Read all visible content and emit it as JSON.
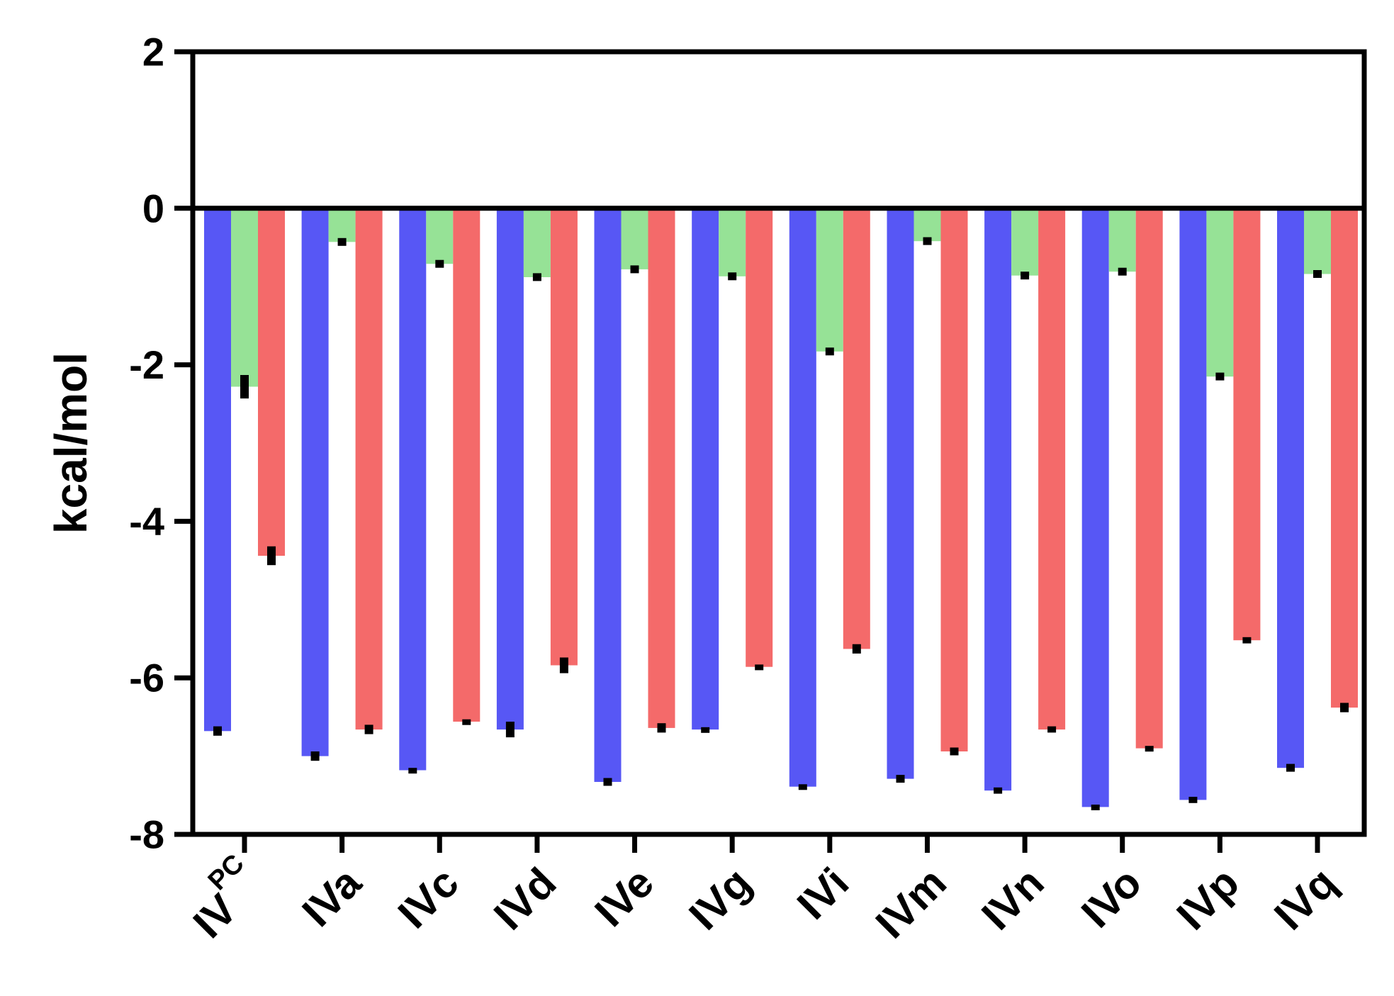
{
  "chart_data": {
    "type": "bar",
    "title": "",
    "xlabel": "",
    "ylabel": "kcal/mol",
    "ylim": [
      -8,
      2
    ],
    "yticks": [
      2,
      0,
      -2,
      -4,
      -6,
      -8
    ],
    "ytick_labels": [
      "2",
      "0",
      "-2",
      "-4",
      "-6",
      "-8"
    ],
    "grid": false,
    "legend": "none",
    "categories": [
      {
        "base": "IV",
        "sup": "PC"
      },
      {
        "base": "IVa",
        "sup": ""
      },
      {
        "base": "IVc",
        "sup": ""
      },
      {
        "base": "IVd",
        "sup": ""
      },
      {
        "base": "IVe",
        "sup": ""
      },
      {
        "base": "IVg",
        "sup": ""
      },
      {
        "base": "IVi",
        "sup": ""
      },
      {
        "base": "IVm",
        "sup": ""
      },
      {
        "base": "IVn",
        "sup": ""
      },
      {
        "base": "IVo",
        "sup": ""
      },
      {
        "base": "IVp",
        "sup": ""
      },
      {
        "base": "IVq",
        "sup": ""
      }
    ],
    "series": [
      {
        "color": "#5757f5",
        "values": [
          -6.68,
          -7.0,
          -7.18,
          -6.66,
          -7.33,
          -6.66,
          -7.39,
          -7.29,
          -7.44,
          -7.65,
          -7.56,
          -7.15
        ],
        "errors": [
          0.06,
          0.06,
          0.03,
          0.1,
          0.05,
          0.03,
          0.03,
          0.05,
          0.04,
          0.03,
          0.04,
          0.05
        ]
      },
      {
        "color": "#96e296",
        "values": [
          -2.28,
          -0.43,
          -0.71,
          -0.88,
          -0.78,
          -0.87,
          -1.83,
          -0.42,
          -0.86,
          -0.81,
          -2.15,
          -0.84
        ],
        "errors": [
          0.15,
          0.05,
          0.05,
          0.05,
          0.05,
          0.05,
          0.05,
          0.05,
          0.05,
          0.05,
          0.05,
          0.05
        ]
      },
      {
        "color": "#f46a6a",
        "values": [
          -4.44,
          -6.66,
          -6.56,
          -5.84,
          -6.64,
          -5.86,
          -5.63,
          -6.94,
          -6.66,
          -6.9,
          -5.52,
          -6.38
        ],
        "errors": [
          0.12,
          0.06,
          0.03,
          0.1,
          0.06,
          0.03,
          0.06,
          0.05,
          0.04,
          0.03,
          0.04,
          0.06
        ]
      }
    ]
  }
}
